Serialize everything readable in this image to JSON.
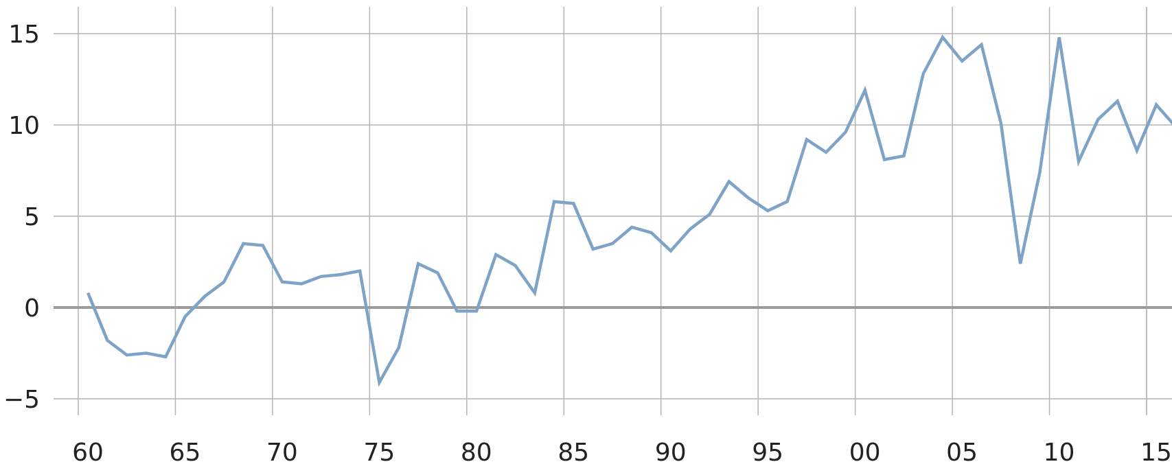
{
  "chart_data": {
    "type": "line",
    "title": "",
    "xlabel": "",
    "ylabel": "",
    "grid": true,
    "legend": "none",
    "xlim": [
      1959.5,
      2017.2
    ],
    "ylim": [
      -6.2,
      15.8
    ],
    "y_ticks": [
      15,
      10,
      5,
      0,
      -5
    ],
    "y_tick_labels": [
      "15",
      "10",
      "5",
      "0",
      "−5"
    ],
    "x_ticks": [
      1960,
      1965,
      1970,
      1975,
      1980,
      1985,
      1990,
      1995,
      2000,
      2005,
      2010,
      2015
    ],
    "x_tick_labels": [
      "60",
      "65",
      "70",
      "75",
      "80",
      "85",
      "90",
      "95",
      "00",
      "05",
      "10",
      "15"
    ],
    "series": [
      {
        "color": "#7ea3c7",
        "x": [
          1960,
          1961,
          1962,
          1963,
          1964,
          1965,
          1966,
          1967,
          1968,
          1969,
          1970,
          1971,
          1972,
          1973,
          1974,
          1975,
          1976,
          1977,
          1978,
          1979,
          1980,
          1981,
          1982,
          1983,
          1984,
          1985,
          1986,
          1987,
          1988,
          1989,
          1990,
          1991,
          1992,
          1993,
          1994,
          1995,
          1996,
          1997,
          1998,
          1999,
          2000,
          2001,
          2002,
          2003,
          2004,
          2005,
          2006,
          2007,
          2008,
          2009,
          2010,
          2011,
          2012,
          2013,
          2014,
          2015,
          2016
        ],
        "values": [
          0.8,
          -1.8,
          -2.6,
          -2.5,
          -2.7,
          -0.5,
          0.6,
          1.4,
          3.5,
          3.4,
          1.4,
          1.3,
          1.7,
          1.8,
          2.0,
          -4.1,
          -2.2,
          2.4,
          1.9,
          -0.2,
          -0.2,
          2.9,
          2.3,
          0.8,
          5.8,
          5.7,
          3.2,
          3.5,
          4.4,
          4.1,
          3.1,
          4.3,
          5.1,
          6.9,
          6.0,
          5.3,
          5.8,
          9.2,
          8.5,
          9.6,
          11.9,
          8.1,
          8.3,
          12.8,
          14.8,
          13.5,
          14.4,
          10.1,
          2.4,
          7.4,
          14.8,
          8.0,
          10.3,
          11.3,
          8.6,
          11.1,
          9.9
        ]
      }
    ]
  }
}
